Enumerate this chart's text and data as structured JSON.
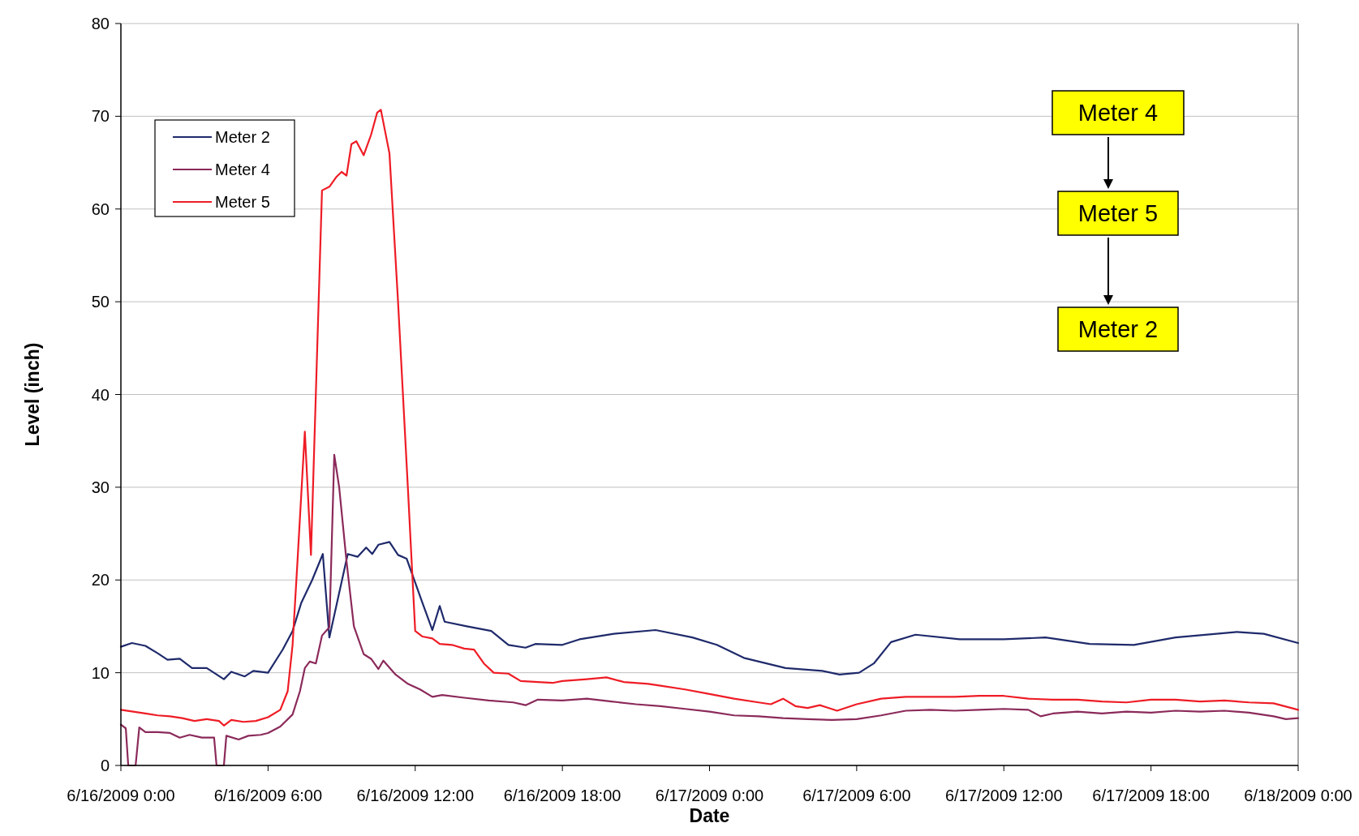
{
  "chart_data": {
    "type": "line",
    "xlabel": "Date",
    "ylabel": "Level (inch)",
    "xlim": [
      "2009-06-16T00:00",
      "2009-06-18T00:00"
    ],
    "xticks": [
      {
        "value": "2009-06-16T00:00",
        "label": "6/16/2009 0:00"
      },
      {
        "value": "2009-06-16T06:00",
        "label": "6/16/2009 6:00"
      },
      {
        "value": "2009-06-16T12:00",
        "label": "6/16/2009 12:00"
      },
      {
        "value": "2009-06-16T18:00",
        "label": "6/16/2009 18:00"
      },
      {
        "value": "2009-06-17T00:00",
        "label": "6/17/2009 0:00"
      },
      {
        "value": "2009-06-17T06:00",
        "label": "6/17/2009 6:00"
      },
      {
        "value": "2009-06-17T12:00",
        "label": "6/17/2009 12:00"
      },
      {
        "value": "2009-06-17T18:00",
        "label": "6/17/2009 18:00"
      },
      {
        "value": "2009-06-18T00:00",
        "label": "6/18/2009 0:00"
      }
    ],
    "ylim": [
      0,
      80
    ],
    "yticks": [
      0,
      10,
      20,
      30,
      40,
      50,
      60,
      70,
      80
    ],
    "grid": "y",
    "legend": "top left",
    "marker": "none",
    "line_style": "solid",
    "annotations": [
      "Meter 4",
      "Meter 5",
      "Meter 2"
    ],
    "series": [
      {
        "name": "Meter 2",
        "color": "#1f2a6b",
        "x": [
          "2009-06-16T00:00",
          "2009-06-16T00:27",
          "2009-06-16T01:00",
          "2009-06-16T01:30",
          "2009-06-16T01:54",
          "2009-06-16T02:24",
          "2009-06-16T02:54",
          "2009-06-16T03:30",
          "2009-06-16T04:12",
          "2009-06-16T04:30",
          "2009-06-16T05:03",
          "2009-06-16T05:24",
          "2009-06-16T06:00",
          "2009-06-16T06:36",
          "2009-06-16T07:00",
          "2009-06-16T07:21",
          "2009-06-16T07:48",
          "2009-06-16T08:14",
          "2009-06-16T08:30",
          "2009-06-16T09:15",
          "2009-06-16T09:39",
          "2009-06-16T10:00",
          "2009-06-16T10:15",
          "2009-06-16T10:30",
          "2009-06-16T10:57",
          "2009-06-16T11:18",
          "2009-06-16T11:39",
          "2009-06-16T12:18",
          "2009-06-16T12:42",
          "2009-06-16T13:00",
          "2009-06-16T13:12",
          "2009-06-16T14:06",
          "2009-06-16T15:06",
          "2009-06-16T15:48",
          "2009-06-16T16:30",
          "2009-06-16T16:54",
          "2009-06-16T18:00",
          "2009-06-16T18:42",
          "2009-06-16T20:06",
          "2009-06-16T21:48",
          "2009-06-16T23:18",
          "2009-06-17T00:18",
          "2009-06-17T01:24",
          "2009-06-17T03:06",
          "2009-06-17T04:36",
          "2009-06-17T05:18",
          "2009-06-17T06:06",
          "2009-06-17T06:42",
          "2009-06-17T07:24",
          "2009-06-17T08:24",
          "2009-06-17T10:12",
          "2009-06-17T12:00",
          "2009-06-17T13:42",
          "2009-06-17T15:30",
          "2009-06-17T17:18",
          "2009-06-17T19:00",
          "2009-06-17T21:30",
          "2009-06-17T22:36",
          "2009-06-18T00:00"
        ],
        "values": [
          12.8,
          13.2,
          12.9,
          12.1,
          11.4,
          11.5,
          10.5,
          10.5,
          9.3,
          10.1,
          9.6,
          10.2,
          10,
          12.5,
          14.5,
          17.5,
          20,
          22.8,
          13.8,
          22.8,
          22.5,
          23.5,
          22.8,
          23.8,
          24.1,
          22.7,
          22.3,
          17.5,
          14.6,
          17.2,
          15.5,
          15,
          14.5,
          13,
          12.7,
          13.1,
          13,
          13.6,
          14.2,
          14.6,
          13.8,
          13,
          11.6,
          10.5,
          10.2,
          9.8,
          10,
          11,
          13.3,
          14.1,
          13.6,
          13.6,
          13.8,
          13.1,
          13,
          13.8,
          14.4,
          14.2,
          13.2
        ]
      },
      {
        "name": "Meter 4",
        "color": "#8b2a5a",
        "x": [
          "2009-06-16T00:00",
          "2009-06-16T00:12",
          "2009-06-16T00:18",
          "2009-06-16T00:36",
          "2009-06-16T00:45",
          "2009-06-16T01:00",
          "2009-06-16T01:30",
          "2009-06-16T02:00",
          "2009-06-16T02:24",
          "2009-06-16T02:48",
          "2009-06-16T03:18",
          "2009-06-16T03:48",
          "2009-06-16T03:54",
          "2009-06-16T04:12",
          "2009-06-16T04:18",
          "2009-06-16T04:48",
          "2009-06-16T05:12",
          "2009-06-16T05:42",
          "2009-06-16T06:00",
          "2009-06-16T06:30",
          "2009-06-16T07:00",
          "2009-06-16T07:18",
          "2009-06-16T07:30",
          "2009-06-16T07:42",
          "2009-06-16T07:57",
          "2009-06-16T08:12",
          "2009-06-16T08:30",
          "2009-06-16T08:42",
          "2009-06-16T08:54",
          "2009-06-16T09:12",
          "2009-06-16T09:30",
          "2009-06-16T09:54",
          "2009-06-16T10:12",
          "2009-06-16T10:30",
          "2009-06-16T10:42",
          "2009-06-16T11:12",
          "2009-06-16T11:42",
          "2009-06-16T12:12",
          "2009-06-16T12:42",
          "2009-06-16T13:06",
          "2009-06-16T14:00",
          "2009-06-16T15:00",
          "2009-06-16T16:00",
          "2009-06-16T16:30",
          "2009-06-16T17:00",
          "2009-06-16T18:00",
          "2009-06-16T19:00",
          "2009-06-16T20:00",
          "2009-06-16T21:00",
          "2009-06-16T22:00",
          "2009-06-16T23:00",
          "2009-06-17T00:00",
          "2009-06-17T01:00",
          "2009-06-17T02:00",
          "2009-06-17T03:00",
          "2009-06-17T04:00",
          "2009-06-17T05:00",
          "2009-06-17T06:00",
          "2009-06-17T07:00",
          "2009-06-17T08:00",
          "2009-06-17T09:00",
          "2009-06-17T10:00",
          "2009-06-17T11:00",
          "2009-06-17T12:00",
          "2009-06-17T13:00",
          "2009-06-17T13:30",
          "2009-06-17T14:00",
          "2009-06-17T15:00",
          "2009-06-17T16:00",
          "2009-06-17T17:00",
          "2009-06-17T18:00",
          "2009-06-17T19:00",
          "2009-06-17T20:00",
          "2009-06-17T21:00",
          "2009-06-17T22:00",
          "2009-06-17T23:00",
          "2009-06-17T23:30",
          "2009-06-18T00:00"
        ],
        "values": [
          4.4,
          4,
          0,
          0,
          4.1,
          3.6,
          3.6,
          3.5,
          3,
          3.3,
          3,
          3,
          0,
          0,
          3.2,
          2.8,
          3.2,
          3.3,
          3.5,
          4.2,
          5.5,
          8,
          10.5,
          11.2,
          11,
          14,
          14.9,
          33.5,
          30,
          22,
          15,
          12,
          11.5,
          10.4,
          11.3,
          9.8,
          8.8,
          8.2,
          7.4,
          7.6,
          7.3,
          7,
          6.8,
          6.5,
          7.1,
          7,
          7.2,
          6.9,
          6.6,
          6.4,
          6.1,
          5.8,
          5.4,
          5.3,
          5.1,
          5,
          4.9,
          5,
          5.4,
          5.9,
          6,
          5.9,
          6,
          6.1,
          6,
          5.3,
          5.6,
          5.8,
          5.6,
          5.8,
          5.7,
          5.9,
          5.8,
          5.9,
          5.7,
          5.3,
          5,
          5.1
        ]
      },
      {
        "name": "Meter 5",
        "color": "#ee1c25",
        "x": [
          "2009-06-16T00:00",
          "2009-06-16T00:30",
          "2009-06-16T01:00",
          "2009-06-16T01:30",
          "2009-06-16T02:00",
          "2009-06-16T02:30",
          "2009-06-16T03:00",
          "2009-06-16T03:30",
          "2009-06-16T04:00",
          "2009-06-16T04:12",
          "2009-06-16T04:30",
          "2009-06-16T05:00",
          "2009-06-16T05:30",
          "2009-06-16T06:00",
          "2009-06-16T06:30",
          "2009-06-16T06:48",
          "2009-06-16T07:00",
          "2009-06-16T07:12",
          "2009-06-16T07:30",
          "2009-06-16T07:45",
          "2009-06-16T08:12",
          "2009-06-16T08:30",
          "2009-06-16T08:48",
          "2009-06-16T09:00",
          "2009-06-16T09:12",
          "2009-06-16T09:24",
          "2009-06-16T09:36",
          "2009-06-16T09:54",
          "2009-06-16T10:12",
          "2009-06-16T10:27",
          "2009-06-16T10:36",
          "2009-06-16T10:57",
          "2009-06-16T11:18",
          "2009-06-16T11:42",
          "2009-06-16T12:00",
          "2009-06-16T12:18",
          "2009-06-16T12:42",
          "2009-06-16T13:00",
          "2009-06-16T13:30",
          "2009-06-16T14:00",
          "2009-06-16T14:24",
          "2009-06-16T14:48",
          "2009-06-16T15:12",
          "2009-06-16T15:48",
          "2009-06-16T16:18",
          "2009-06-16T17:00",
          "2009-06-16T17:36",
          "2009-06-16T18:00",
          "2009-06-16T19:00",
          "2009-06-16T19:48",
          "2009-06-16T20:30",
          "2009-06-16T21:30",
          "2009-06-16T22:00",
          "2009-06-16T23:00",
          "2009-06-17T00:00",
          "2009-06-17T01:00",
          "2009-06-17T02:00",
          "2009-06-17T02:30",
          "2009-06-17T03:00",
          "2009-06-17T03:30",
          "2009-06-17T04:00",
          "2009-06-17T04:30",
          "2009-06-17T05:12",
          "2009-06-17T06:00",
          "2009-06-17T07:00",
          "2009-06-17T08:00",
          "2009-06-17T09:00",
          "2009-06-17T10:00",
          "2009-06-17T11:00",
          "2009-06-17T12:00",
          "2009-06-17T13:00",
          "2009-06-17T14:00",
          "2009-06-17T15:00",
          "2009-06-17T16:00",
          "2009-06-17T17:00",
          "2009-06-17T18:00",
          "2009-06-17T19:00",
          "2009-06-17T20:00",
          "2009-06-17T21:00",
          "2009-06-17T22:00",
          "2009-06-17T23:00",
          "2009-06-18T00:00"
        ],
        "values": [
          6,
          5.8,
          5.6,
          5.4,
          5.3,
          5.1,
          4.8,
          5,
          4.8,
          4.3,
          4.9,
          4.7,
          4.8,
          5.2,
          6,
          8,
          13,
          22,
          36,
          22.7,
          62,
          62.4,
          63.5,
          64,
          63.6,
          67,
          67.3,
          65.8,
          68,
          70.4,
          70.7,
          66,
          50,
          30,
          14.5,
          13.9,
          13.7,
          13.1,
          13,
          12.6,
          12.5,
          11,
          10,
          9.9,
          9.1,
          9,
          8.9,
          9.1,
          9.3,
          9.5,
          9,
          8.8,
          8.6,
          8.2,
          7.7,
          7.2,
          6.8,
          6.6,
          7.2,
          6.4,
          6.2,
          6.5,
          5.9,
          6.6,
          7.2,
          7.4,
          7.4,
          7.4,
          7.5,
          7.5,
          7.2,
          7.1,
          7.1,
          6.9,
          6.8,
          7.1,
          7.1,
          6.9,
          7,
          6.8,
          6.7,
          6
        ]
      }
    ]
  }
}
